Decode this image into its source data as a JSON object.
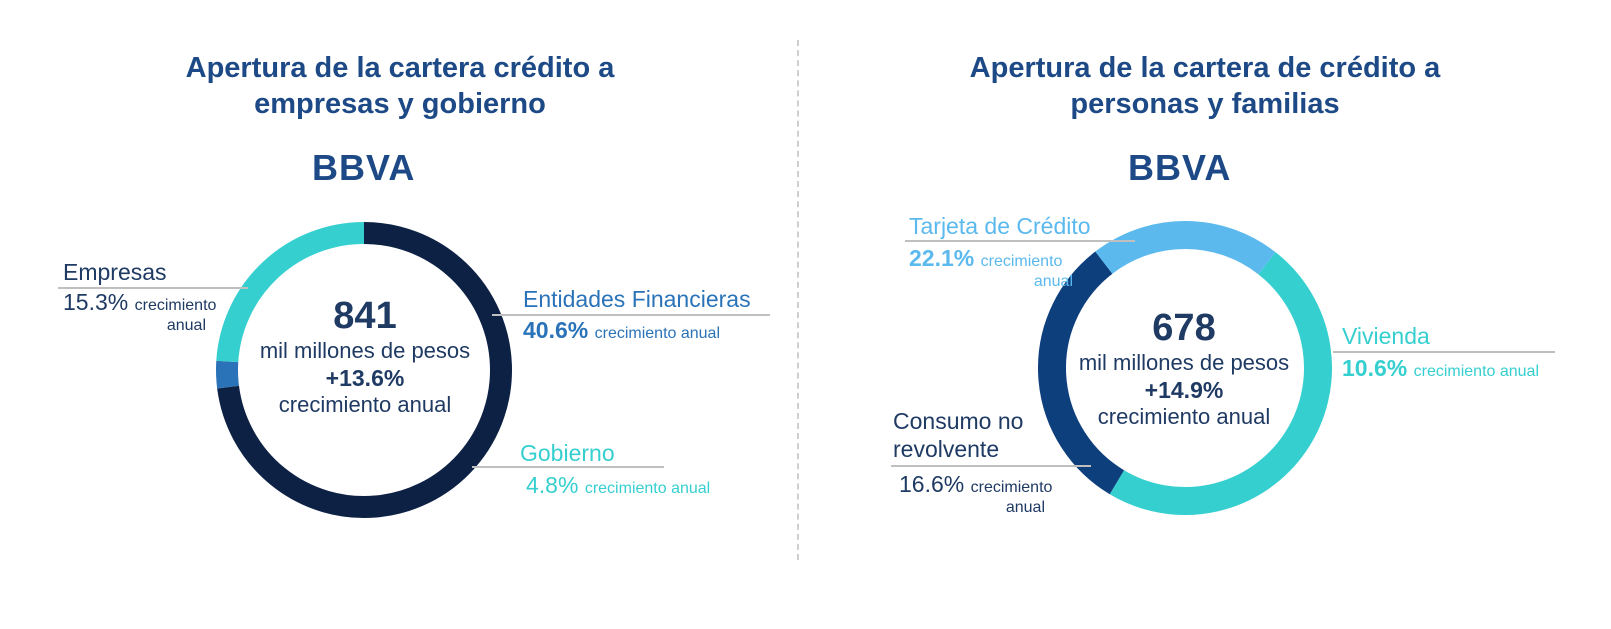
{
  "colors": {
    "title": "#1d4a86",
    "text_dark": "#1f3a63",
    "navy": "#0d2144",
    "mid_blue": "#2a73b8",
    "teal": "#36cfd0",
    "light_blue": "#5bb9ee",
    "dark_blue": "#0e3f7d",
    "rule": "#bfbfbf"
  },
  "left": {
    "title_line1": "Apertura de la cartera crédito a",
    "title_line2": "empresas y gobierno",
    "logo": "BBVA",
    "center": {
      "value": "841",
      "unit": "mil millones de pesos",
      "growth": "+13.6%",
      "growth_label": "crecimiento anual"
    },
    "labels": {
      "empresas_name": "Empresas",
      "empresas_pct": "15.3%",
      "empresas_g1": "crecimiento",
      "empresas_g2": "anual",
      "entidades_name": "Entidades Financieras",
      "entidades_pct": "40.6%",
      "entidades_g": "crecimiento anual",
      "gobierno_name": "Gobierno",
      "gobierno_pct": "4.8%",
      "gobierno_g": "crecimiento anual"
    }
  },
  "right": {
    "title_line1": "Apertura de la cartera de crédito a",
    "title_line2": "personas y familias",
    "logo": "BBVA",
    "center": {
      "value": "678",
      "unit": "mil millones de pesos",
      "growth": "+14.9%",
      "growth_label": "crecimiento anual"
    },
    "labels": {
      "tarjeta_name": "Tarjeta de Crédito",
      "tarjeta_pct": "22.1%",
      "tarjeta_g1": "crecimiento",
      "tarjeta_g2": "anual",
      "vivienda_name": "Vivienda",
      "vivienda_pct": "10.6%",
      "vivienda_g": "crecimiento anual",
      "consumo_name1": "Consumo no",
      "consumo_name2": "revolvente",
      "consumo_pct": "16.6%",
      "consumo_g1": "crecimiento",
      "consumo_g2": "anual"
    }
  },
  "chart_data": [
    {
      "type": "pie",
      "donut": true,
      "title": "Apertura de la cartera crédito a empresas y gobierno",
      "total": 841,
      "total_unit": "mil millones de pesos",
      "total_growth_pct": 13.6,
      "series": [
        {
          "name": "Empresas",
          "share": 0.73,
          "growth_pct": 15.3,
          "color": "#0d2144"
        },
        {
          "name": "Entidades Financieras",
          "share": 0.03,
          "growth_pct": 40.6,
          "color": "#2a73b8"
        },
        {
          "name": "Gobierno",
          "share": 0.24,
          "growth_pct": 4.8,
          "color": "#36cfd0"
        }
      ]
    },
    {
      "type": "pie",
      "donut": true,
      "title": "Apertura de la cartera de crédito a personas y familias",
      "total": 678,
      "total_unit": "mil millones de pesos",
      "total_growth_pct": 14.9,
      "series": [
        {
          "name": "Vivienda",
          "share": 0.48,
          "growth_pct": 10.6,
          "color": "#36cfd0"
        },
        {
          "name": "Consumo no revolvente",
          "share": 0.31,
          "growth_pct": 16.6,
          "color": "#0e3f7d"
        },
        {
          "name": "Tarjeta de Crédito",
          "share": 0.21,
          "growth_pct": 22.1,
          "color": "#5bb9ee"
        }
      ]
    }
  ]
}
